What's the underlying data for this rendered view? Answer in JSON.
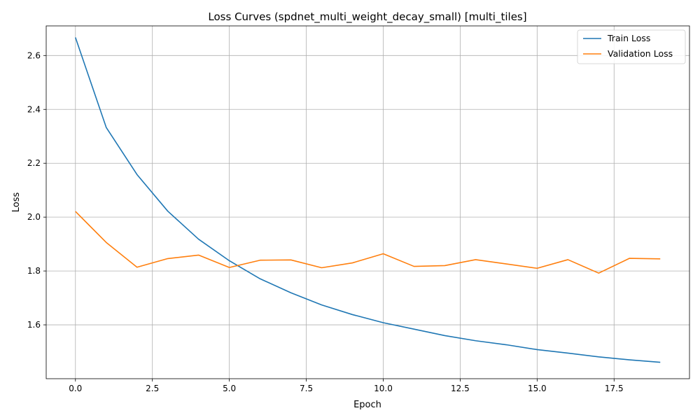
{
  "chart_data": {
    "type": "line",
    "title": "Loss Curves (spdnet_multi_weight_decay_small) [multi_tiles]",
    "xlabel": "Epoch",
    "ylabel": "Loss",
    "xlim": [
      -0.95,
      19.95
    ],
    "ylim": [
      1.4,
      2.71
    ],
    "xticks": [
      0.0,
      2.5,
      5.0,
      7.5,
      10.0,
      12.5,
      15.0,
      17.5
    ],
    "xtick_labels": [
      "0.0",
      "2.5",
      "5.0",
      "7.5",
      "10.0",
      "12.5",
      "15.0",
      "17.5"
    ],
    "yticks": [
      1.6,
      1.8,
      2.0,
      2.2,
      2.4,
      2.6
    ],
    "ytick_labels": [
      "1.6",
      "1.8",
      "2.0",
      "2.2",
      "2.4",
      "2.6"
    ],
    "grid": true,
    "legend_position": "top-right",
    "x": [
      0,
      1,
      2,
      3,
      4,
      5,
      6,
      7,
      8,
      9,
      10,
      11,
      12,
      13,
      14,
      15,
      16,
      17,
      18,
      19
    ],
    "series": [
      {
        "name": "Train Loss",
        "color": "#1f77b4",
        "values": [
          2.667,
          2.333,
          2.158,
          2.022,
          1.918,
          1.838,
          1.771,
          1.719,
          1.674,
          1.638,
          1.608,
          1.584,
          1.56,
          1.541,
          1.526,
          1.508,
          1.495,
          1.481,
          1.47,
          1.461
        ]
      },
      {
        "name": "Validation Loss",
        "color": "#ff7f0e",
        "values": [
          2.021,
          1.906,
          1.814,
          1.846,
          1.859,
          1.813,
          1.84,
          1.841,
          1.812,
          1.83,
          1.864,
          1.817,
          1.82,
          1.842,
          1.826,
          1.81,
          1.842,
          1.792,
          1.847,
          1.845
        ]
      }
    ]
  }
}
